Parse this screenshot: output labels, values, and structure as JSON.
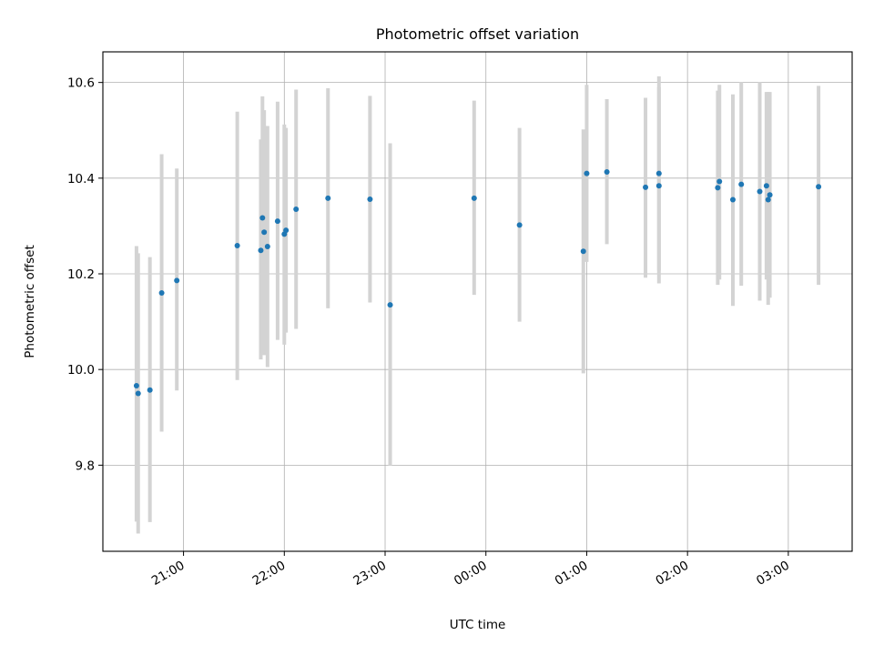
{
  "chart_data": {
    "type": "scatter",
    "title": "Photometric offset variation",
    "xlabel": "UTC time",
    "ylabel": "Photometric offset",
    "x_ticks": [
      "21:00",
      "22:00",
      "23:00",
      "00:00",
      "01:00",
      "02:00",
      "03:00"
    ],
    "x_tick_times": [
      "21:00",
      "22:00",
      "23:00",
      "00:00",
      "01:00",
      "02:00",
      "03:00"
    ],
    "xlim": [
      "20:12",
      "03:38"
    ],
    "y_ticks": [
      "9.8",
      "10.0",
      "10.2",
      "10.4",
      "10.6"
    ],
    "ylim": [
      9.62,
      10.664
    ],
    "grid": true,
    "marker_color": "#1f77b4",
    "errorbar_color": "#d3d3d3",
    "points": [
      {
        "t": "20:32",
        "y": 9.966,
        "lo": 9.682,
        "hi": 10.258
      },
      {
        "t": "20:33",
        "y": 9.95,
        "lo": 9.657,
        "hi": 10.243
      },
      {
        "t": "20:40",
        "y": 9.957,
        "lo": 9.681,
        "hi": 10.235
      },
      {
        "t": "20:47",
        "y": 10.16,
        "lo": 9.87,
        "hi": 10.45
      },
      {
        "t": "20:56",
        "y": 10.186,
        "lo": 9.956,
        "hi": 10.42
      },
      {
        "t": "21:32",
        "y": 10.259,
        "lo": 9.978,
        "hi": 10.539
      },
      {
        "t": "21:46",
        "y": 10.249,
        "lo": 10.021,
        "hi": 10.481
      },
      {
        "t": "21:47",
        "y": 10.317,
        "lo": 10.034,
        "hi": 10.571
      },
      {
        "t": "21:48",
        "y": 10.287,
        "lo": 10.03,
        "hi": 10.542
      },
      {
        "t": "21:50",
        "y": 10.257,
        "lo": 10.005,
        "hi": 10.509
      },
      {
        "t": "21:56",
        "y": 10.31,
        "lo": 10.062,
        "hi": 10.56
      },
      {
        "t": "22:00",
        "y": 10.283,
        "lo": 10.052,
        "hi": 10.512
      },
      {
        "t": "22:01",
        "y": 10.291,
        "lo": 10.077,
        "hi": 10.505
      },
      {
        "t": "22:07",
        "y": 10.335,
        "lo": 10.085,
        "hi": 10.585
      },
      {
        "t": "22:26",
        "y": 10.358,
        "lo": 10.128,
        "hi": 10.588
      },
      {
        "t": "22:51",
        "y": 10.356,
        "lo": 10.14,
        "hi": 10.572
      },
      {
        "t": "23:03",
        "y": 10.135,
        "lo": 9.8,
        "hi": 10.473
      },
      {
        "t": "23:53",
        "y": 10.358,
        "lo": 10.156,
        "hi": 10.562
      },
      {
        "t": "00:20",
        "y": 10.302,
        "lo": 10.1,
        "hi": 10.505
      },
      {
        "t": "00:58",
        "y": 10.247,
        "lo": 9.992,
        "hi": 10.502
      },
      {
        "t": "01:00",
        "y": 10.41,
        "lo": 10.225,
        "hi": 10.595
      },
      {
        "t": "01:12",
        "y": 10.413,
        "lo": 10.262,
        "hi": 10.565
      },
      {
        "t": "01:35",
        "y": 10.381,
        "lo": 10.192,
        "hi": 10.568
      },
      {
        "t": "01:43",
        "y": 10.41,
        "lo": 10.207,
        "hi": 10.613
      },
      {
        "t": "01:43",
        "y": 10.384,
        "lo": 10.18,
        "hi": 10.59
      },
      {
        "t": "02:18",
        "y": 10.38,
        "lo": 10.177,
        "hi": 10.583
      },
      {
        "t": "02:19",
        "y": 10.393,
        "lo": 10.188,
        "hi": 10.595
      },
      {
        "t": "02:27",
        "y": 10.355,
        "lo": 10.133,
        "hi": 10.575
      },
      {
        "t": "02:32",
        "y": 10.387,
        "lo": 10.175,
        "hi": 10.6
      },
      {
        "t": "02:43",
        "y": 10.372,
        "lo": 10.144,
        "hi": 10.6
      },
      {
        "t": "02:47",
        "y": 10.384,
        "lo": 10.188,
        "hi": 10.58
      },
      {
        "t": "02:48",
        "y": 10.355,
        "lo": 10.135,
        "hi": 10.58
      },
      {
        "t": "02:49",
        "y": 10.365,
        "lo": 10.15,
        "hi": 10.58
      },
      {
        "t": "03:18",
        "y": 10.382,
        "lo": 10.177,
        "hi": 10.593
      }
    ]
  }
}
